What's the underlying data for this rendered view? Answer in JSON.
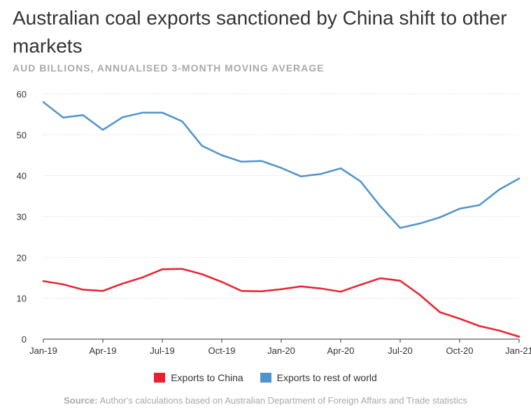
{
  "colors": {
    "china": "#e8212e",
    "rest": "#4f93cc",
    "grid": "#cfcfcf"
  },
  "chart_data": {
    "type": "line",
    "title": "Australian coal exports sanctioned by China shift to other markets",
    "subtitle": "AUD BILLIONS, ANNUALISED 3-MONTH MOVING AVERAGE",
    "xlabel": "",
    "ylabel": "",
    "ylim": [
      0,
      60
    ],
    "yticks": [
      0,
      10,
      20,
      30,
      40,
      50,
      60
    ],
    "xtick_labels": [
      "Jan-19",
      "Apr-19",
      "Jul-19",
      "Oct-19",
      "Jan-20",
      "Apr-20",
      "Jul-20",
      "Oct-20",
      "Jan-21"
    ],
    "x": [
      "Jan-19",
      "Feb-19",
      "Mar-19",
      "Apr-19",
      "May-19",
      "Jun-19",
      "Jul-19",
      "Aug-19",
      "Sep-19",
      "Oct-19",
      "Nov-19",
      "Dec-19",
      "Jan-20",
      "Feb-20",
      "Mar-20",
      "Apr-20",
      "May-20",
      "Jun-20",
      "Jul-20",
      "Aug-20",
      "Sep-20",
      "Oct-20",
      "Nov-20",
      "Dec-20",
      "Jan-21"
    ],
    "series": [
      {
        "name": "Exports to China",
        "color_key": "china",
        "values": [
          14.2,
          13.4,
          12.1,
          11.8,
          13.6,
          15.1,
          17.1,
          17.2,
          15.9,
          14.0,
          11.8,
          11.7,
          12.2,
          12.9,
          12.4,
          11.6,
          13.3,
          14.9,
          14.3,
          10.8,
          6.6,
          5.0,
          3.2,
          2.1,
          0.6
        ]
      },
      {
        "name": "Exports to rest of world",
        "color_key": "rest",
        "values": [
          58.0,
          54.2,
          54.8,
          51.2,
          54.3,
          55.4,
          55.4,
          53.3,
          47.3,
          45.0,
          43.4,
          43.6,
          41.9,
          39.8,
          40.4,
          41.8,
          38.6,
          32.5,
          27.2,
          28.3,
          29.8,
          31.9,
          32.8,
          36.6,
          39.3
        ]
      }
    ],
    "legend": [
      {
        "label": "Exports to China",
        "color_key": "china"
      },
      {
        "label": "Exports to rest of world",
        "color_key": "rest"
      }
    ],
    "legend_position": "bottom",
    "source_label": "Source:",
    "source_text": "Author's calculations based on Australian Department of Foreign Affairs and Trade statistics"
  }
}
